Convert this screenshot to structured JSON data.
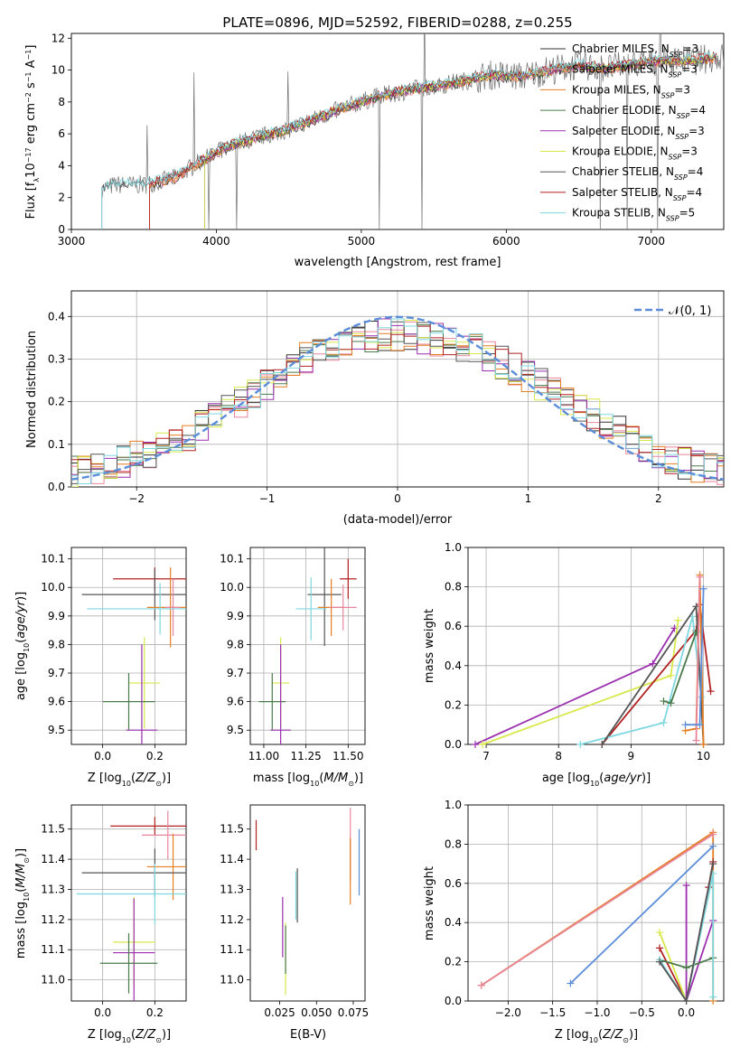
{
  "figure": {
    "title": "PLATE=0896, MJD=52592, FIBERID=0288, z=0.255"
  },
  "styles": {
    "colors": {
      "Chabrier MILES": "#333333",
      "Salpeter MILES": "#e8859a",
      "Kroupa MILES": "#e67e22",
      "Chabrier ELODIE": "#4a7a4a",
      "Salpeter ELODIE": "#9b2fae",
      "Kroupa ELODIE": "#d8e84a",
      "Chabrier STELIB": "#555555",
      "Salpeter STELIB": "#b22222",
      "Kroupa STELIB": "#7fd8e0"
    },
    "data_color": "#6f6f6f",
    "normal_color": "#5b8dd9"
  },
  "chart_data": [
    {
      "id": "spectrum",
      "type": "line",
      "title": "PLATE=0896, MJD=52592, FIBERID=0288, z=0.255",
      "xlabel": "wavelength [Angstrom, rest frame]",
      "ylabel": "Flux [f_λ 10^-17 erg cm^-2 s^-1 A^-1]",
      "xlim": [
        3000,
        7500
      ],
      "ylim": [
        0,
        12.3
      ],
      "xticks": [
        3000,
        4000,
        5000,
        6000,
        7000
      ],
      "yticks": [
        0,
        2,
        4,
        6,
        8,
        10,
        12
      ],
      "grid": false,
      "legend_position": "upper-right",
      "legend": [
        {
          "label": "Chabrier MILES, N_SSP=3"
        },
        {
          "label": "Salpeter MILES, N_SSP=3"
        },
        {
          "label": "Kroupa MILES, N_SSP=3"
        },
        {
          "label": "Chabrier ELODIE, N_SSP=4"
        },
        {
          "label": "Salpeter ELODIE, N_SSP=3"
        },
        {
          "label": "Kroupa ELODIE, N_SSP=3"
        },
        {
          "label": "Chabrier STELIB, N_SSP=4"
        },
        {
          "label": "Salpeter STELIB, N_SSP=4"
        },
        {
          "label": "Kroupa STELIB, N_SSP=5"
        }
      ],
      "continuum": {
        "x": [
          3200,
          3300,
          3500,
          3700,
          3900,
          4100,
          4300,
          4500,
          4700,
          4900,
          5100,
          5300,
          5500,
          5700,
          5900,
          6100,
          6300,
          6500,
          6700,
          6900,
          7100,
          7300,
          7450
        ],
        "y": [
          2.5,
          2.8,
          2.8,
          3.2,
          4.3,
          5.3,
          5.8,
          6.3,
          7.0,
          7.7,
          8.3,
          8.7,
          9.0,
          9.3,
          9.7,
          9.6,
          10.0,
          10.3,
          10.1,
          10.4,
          10.6,
          10.6,
          10.8
        ]
      },
      "model_start": {
        "Chabrier MILES": 3540,
        "Salpeter MILES": 3540,
        "Kroupa MILES": 3540,
        "Chabrier ELODIE": 3920,
        "Salpeter ELODIE": 3920,
        "Kroupa ELODIE": 3920,
        "Chabrier STELIB": 3210,
        "Salpeter STELIB": 3540,
        "Kroupa STELIB": 3210
      }
    },
    {
      "id": "residual-hist",
      "type": "histogram",
      "xlabel": "(data-model)/error",
      "ylabel": "Normed distribution",
      "xlim": [
        -2.5,
        2.5
      ],
      "ylim": [
        0,
        0.46
      ],
      "xticks": [
        -2,
        -1,
        0,
        1,
        2
      ],
      "yticks": [
        0.0,
        0.1,
        0.2,
        0.3,
        0.4
      ],
      "grid": true,
      "legend_position": "upper-right",
      "legend": [
        {
          "label": "𝒩(0, 1)"
        }
      ],
      "bin_width": 0.1,
      "mean_profile": {
        "x": [
          -2.5,
          -2.2,
          -1.9,
          -1.6,
          -1.3,
          -1.0,
          -0.7,
          -0.4,
          -0.1,
          0.1,
          0.4,
          0.7,
          1.0,
          1.3,
          1.6,
          1.9,
          2.2,
          2.5
        ],
        "y": [
          0.033,
          0.045,
          0.08,
          0.12,
          0.18,
          0.24,
          0.3,
          0.34,
          0.36,
          0.355,
          0.34,
          0.31,
          0.26,
          0.2,
          0.15,
          0.09,
          0.055,
          0.035
        ]
      }
    },
    {
      "id": "age-vs-Z",
      "type": "errorbar",
      "xlabel": "Z [log10(Z/Z☉)]",
      "ylabel": "age [log10(age/yr)]",
      "xlim": [
        -0.12,
        0.32
      ],
      "ylim": [
        9.45,
        10.14
      ],
      "xticks": [
        0.0,
        0.2
      ],
      "yticks": [
        9.5,
        9.6,
        9.7,
        9.8,
        9.9,
        10.0,
        10.1
      ],
      "grid": true,
      "points": [
        {
          "model": "Salpeter STELIB",
          "x": 0.2,
          "xerr": 0.16,
          "y": 10.03,
          "yerr": 0.04
        },
        {
          "model": "Chabrier STELIB",
          "x": 0.2,
          "xerr": 0.28,
          "y": 9.975,
          "yerr": 0.09
        },
        {
          "model": "Kroupa MILES",
          "x": 0.26,
          "xerr": 0.09,
          "y": 9.93,
          "yerr": 0.14
        },
        {
          "model": "Salpeter MILES",
          "x": 0.27,
          "xerr": 0.03,
          "y": 9.93,
          "yerr": 0.1
        },
        {
          "model": "Kroupa STELIB",
          "x": 0.22,
          "xerr": 0.28,
          "y": 9.925,
          "yerr": 0.09
        },
        {
          "model": "Kroupa ELODIE",
          "x": 0.16,
          "xerr": 0.06,
          "y": 9.665,
          "yerr": 0.16
        },
        {
          "model": "Chabrier ELODIE",
          "x": 0.1,
          "xerr": 0.1,
          "y": 9.6,
          "yerr": 0.1
        },
        {
          "model": "Salpeter ELODIE",
          "x": 0.15,
          "xerr": 0.06,
          "y": 9.5,
          "yerr": 0.3
        }
      ]
    },
    {
      "id": "age-vs-mass",
      "type": "errorbar",
      "xlabel": "mass [log10(M/M☉)]",
      "xlim": [
        10.92,
        11.6
      ],
      "ylim": [
        9.45,
        10.14
      ],
      "xticks": [
        11.0,
        11.25,
        11.5
      ],
      "yticks": [
        9.5,
        9.6,
        9.7,
        9.8,
        9.9,
        10.0,
        10.1
      ],
      "grid": true,
      "points": [
        {
          "model": "Salpeter STELIB",
          "x": 11.5,
          "xerr": 0.05,
          "y": 10.03,
          "yerr": 0.07
        },
        {
          "model": "Chabrier STELIB",
          "x": 11.36,
          "xerr": 0.1,
          "y": 9.975,
          "yerr": 0.18
        },
        {
          "model": "Kroupa MILES",
          "x": 11.4,
          "xerr": 0.08,
          "y": 9.93,
          "yerr": 0.1
        },
        {
          "model": "Kroupa STELIB",
          "x": 11.28,
          "xerr": 0.09,
          "y": 9.925,
          "yerr": 0.11
        },
        {
          "model": "Salpeter MILES",
          "x": 11.47,
          "xerr": 0.08,
          "y": 9.93,
          "yerr": 0.08
        },
        {
          "model": "Kroupa ELODIE",
          "x": 11.1,
          "xerr": 0.05,
          "y": 9.665,
          "yerr": 0.16
        },
        {
          "model": "Chabrier ELODIE",
          "x": 11.05,
          "xerr": 0.08,
          "y": 9.6,
          "yerr": 0.1
        },
        {
          "model": "Salpeter ELODIE",
          "x": 11.1,
          "xerr": 0.06,
          "y": 9.5,
          "yerr": 0.3
        }
      ]
    },
    {
      "id": "weight-vs-age",
      "type": "line",
      "xlabel": "age [log10(age/yr)]",
      "ylabel": "mass weight",
      "xlim": [
        6.75,
        10.28
      ],
      "ylim": [
        0,
        1.0
      ],
      "xticks": [
        7,
        8,
        9,
        10
      ],
      "yticks": [
        0.0,
        0.2,
        0.4,
        0.6,
        0.8,
        1.0
      ],
      "grid": true,
      "series": [
        {
          "model": "Salpeter ELODIE",
          "x": [
            6.85,
            9.3,
            9.6
          ],
          "y": [
            0.0,
            0.41,
            0.59
          ]
        },
        {
          "model": "Kroupa ELODIE",
          "x": [
            6.95,
            9.55,
            9.65
          ],
          "y": [
            0.0,
            0.35,
            0.63
          ]
        },
        {
          "model": "Salpeter STELIB",
          "x": [
            8.6,
            9.9,
            9.95,
            10.1
          ],
          "y": [
            0.0,
            0.58,
            0.71,
            0.27
          ]
        },
        {
          "model": "Kroupa STELIB",
          "x": [
            8.3,
            9.45,
            9.85,
            9.97
          ],
          "y": [
            0.0,
            0.11,
            0.65,
            0.24
          ]
        },
        {
          "model": "Chabrier STELIB",
          "x": [
            8.6,
            9.9,
            10.0
          ],
          "y": [
            0.0,
            0.7,
            0.0
          ]
        },
        {
          "model": "Kroupa MILES",
          "x": [
            9.75,
            9.9,
            9.95,
            10.0
          ],
          "y": [
            0.07,
            0.08,
            0.86,
            0.0
          ]
        },
        {
          "model": "Chabrier ELODIE",
          "x": [
            9.45,
            9.55,
            9.9
          ],
          "y": [
            0.22,
            0.21,
            0.57
          ]
        },
        {
          "model": "Salpeter MILES",
          "x": [
            9.9,
            9.95
          ],
          "y": [
            0.02,
            0.85
          ]
        }
      ],
      "extra_lines": [
        {
          "label": "blue",
          "x": [
            9.75,
            9.95,
            10.0
          ],
          "y": [
            0.1,
            0.1,
            0.79
          ]
        }
      ]
    },
    {
      "id": "mass-vs-Z",
      "type": "errorbar",
      "xlabel": "Z [log10(Z/Z☉)]",
      "ylabel": "mass [log10(M/M☉)]",
      "xlim": [
        -0.12,
        0.32
      ],
      "ylim": [
        10.93,
        11.58
      ],
      "xticks": [
        0.0,
        0.2
      ],
      "yticks": [
        11.0,
        11.1,
        11.2,
        11.3,
        11.4,
        11.5
      ],
      "grid": true,
      "points": [
        {
          "model": "Salpeter STELIB",
          "x": 0.2,
          "xerr": 0.17,
          "y": 11.51,
          "yerr": 0.03
        },
        {
          "model": "Salpeter MILES",
          "x": 0.25,
          "xerr": 0.1,
          "y": 11.48,
          "yerr": 0.08
        },
        {
          "model": "Kroupa MILES",
          "x": 0.27,
          "xerr": 0.1,
          "y": 11.375,
          "yerr": 0.11
        },
        {
          "model": "Chabrier STELIB",
          "x": 0.2,
          "xerr": 0.28,
          "y": 11.355,
          "yerr": 0.08
        },
        {
          "model": "Kroupa STELIB",
          "x": 0.2,
          "xerr": 0.3,
          "y": 11.285,
          "yerr": 0.1
        },
        {
          "model": "Kroupa ELODIE",
          "x": 0.12,
          "xerr": 0.08,
          "y": 11.125,
          "yerr": 0.15
        },
        {
          "model": "Salpeter ELODIE",
          "x": 0.12,
          "xerr": 0.08,
          "y": 11.09,
          "yerr": 0.18
        },
        {
          "model": "Chabrier ELODIE",
          "x": 0.1,
          "xerr": 0.11,
          "y": 11.055,
          "yerr": 0.1
        }
      ]
    },
    {
      "id": "mass-vs-ebv",
      "type": "errorbar",
      "xlabel": "E(B-V)",
      "xlim": [
        0.005,
        0.083
      ],
      "ylim": [
        10.93,
        11.58
      ],
      "xticks": [
        0.025,
        0.05,
        0.075
      ],
      "xtick_labels": [
        "0.025",
        "0.050",
        "0.075"
      ],
      "yticks": [
        11.0,
        11.1,
        11.2,
        11.3,
        11.4,
        11.5
      ],
      "grid": false,
      "points": [
        {
          "model": "Salpeter STELIB",
          "x": 0.009,
          "y": 11.48,
          "yerr": 0.05
        },
        {
          "model": "Salpeter ELODIE",
          "x": 0.027,
          "y": 11.175,
          "yerr": 0.1
        },
        {
          "model": "Kroupa ELODIE",
          "x": 0.029,
          "y": 11.07,
          "yerr": 0.12
        },
        {
          "model": "Chabrier ELODIE",
          "x": 0.029,
          "y": 11.1,
          "yerr": 0.08
        },
        {
          "model": "Kroupa STELIB",
          "x": 0.036,
          "y": 11.28,
          "yerr": 0.08
        },
        {
          "model": "Chabrier STELIB",
          "x": 0.037,
          "y": 11.28,
          "yerr": 0.09
        },
        {
          "model": "Salpeter MILES",
          "x": 0.073,
          "y": 11.45,
          "yerr": 0.12
        },
        {
          "model": "Kroupa MILES",
          "x": 0.073,
          "y": 11.36,
          "yerr": 0.11
        }
      ],
      "extra_points": [
        {
          "color": "#5b8dd9",
          "x": 0.079,
          "y": 11.39,
          "yerr": 0.11
        }
      ]
    },
    {
      "id": "weight-vs-Z",
      "type": "line",
      "xlabel": "Z [log10(Z/Z☉)]",
      "ylabel": "mass weight",
      "xlim": [
        -2.45,
        0.42
      ],
      "ylim": [
        0,
        1.0
      ],
      "xticks": [
        -2.0,
        -1.5,
        -1.0,
        -0.5,
        0.0
      ],
      "xtick_labels": [
        "−2.0",
        "−1.5",
        "−1.0",
        "−0.5",
        "0.0"
      ],
      "yticks": [
        0.0,
        0.2,
        0.4,
        0.6,
        0.8,
        1.0
      ],
      "grid": true,
      "series": [
        {
          "model": "Kroupa MILES",
          "x": [
            -2.3,
            0.3,
            0.3
          ],
          "y": [
            0.08,
            0.86,
            0.0
          ]
        },
        {
          "model": "Salpeter MILES",
          "x": [
            -2.3,
            0.3
          ],
          "y": [
            0.08,
            0.85
          ]
        },
        {
          "model": "Salpeter STELIB",
          "x": [
            -0.3,
            0.0,
            0.25,
            0.3
          ],
          "y": [
            0.27,
            0.0,
            0.58,
            0.71
          ]
        },
        {
          "model": "Kroupa ELODIE",
          "x": [
            -0.3,
            0.0,
            0.0
          ],
          "y": [
            0.35,
            0.0,
            0.0
          ]
        },
        {
          "model": "Salpeter ELODIE",
          "x": [
            0.0,
            0.0,
            0.3
          ],
          "y": [
            0.59,
            0.0,
            0.41
          ]
        },
        {
          "model": "Chabrier ELODIE",
          "x": [
            -0.3,
            0.0,
            0.3
          ],
          "y": [
            0.21,
            0.17,
            0.22
          ]
        },
        {
          "model": "Kroupa STELIB",
          "x": [
            -0.3,
            0.0,
            0.3,
            0.3
          ],
          "y": [
            0.21,
            0.0,
            0.65,
            0.02
          ]
        },
        {
          "model": "Chabrier STELIB",
          "x": [
            -0.3,
            0.0,
            0.3
          ],
          "y": [
            0.2,
            0.0,
            0.7
          ]
        }
      ],
      "extra_lines": [
        {
          "label": "blue",
          "x": [
            -1.3,
            0.3
          ],
          "y": [
            0.09,
            0.79
          ]
        }
      ]
    }
  ]
}
